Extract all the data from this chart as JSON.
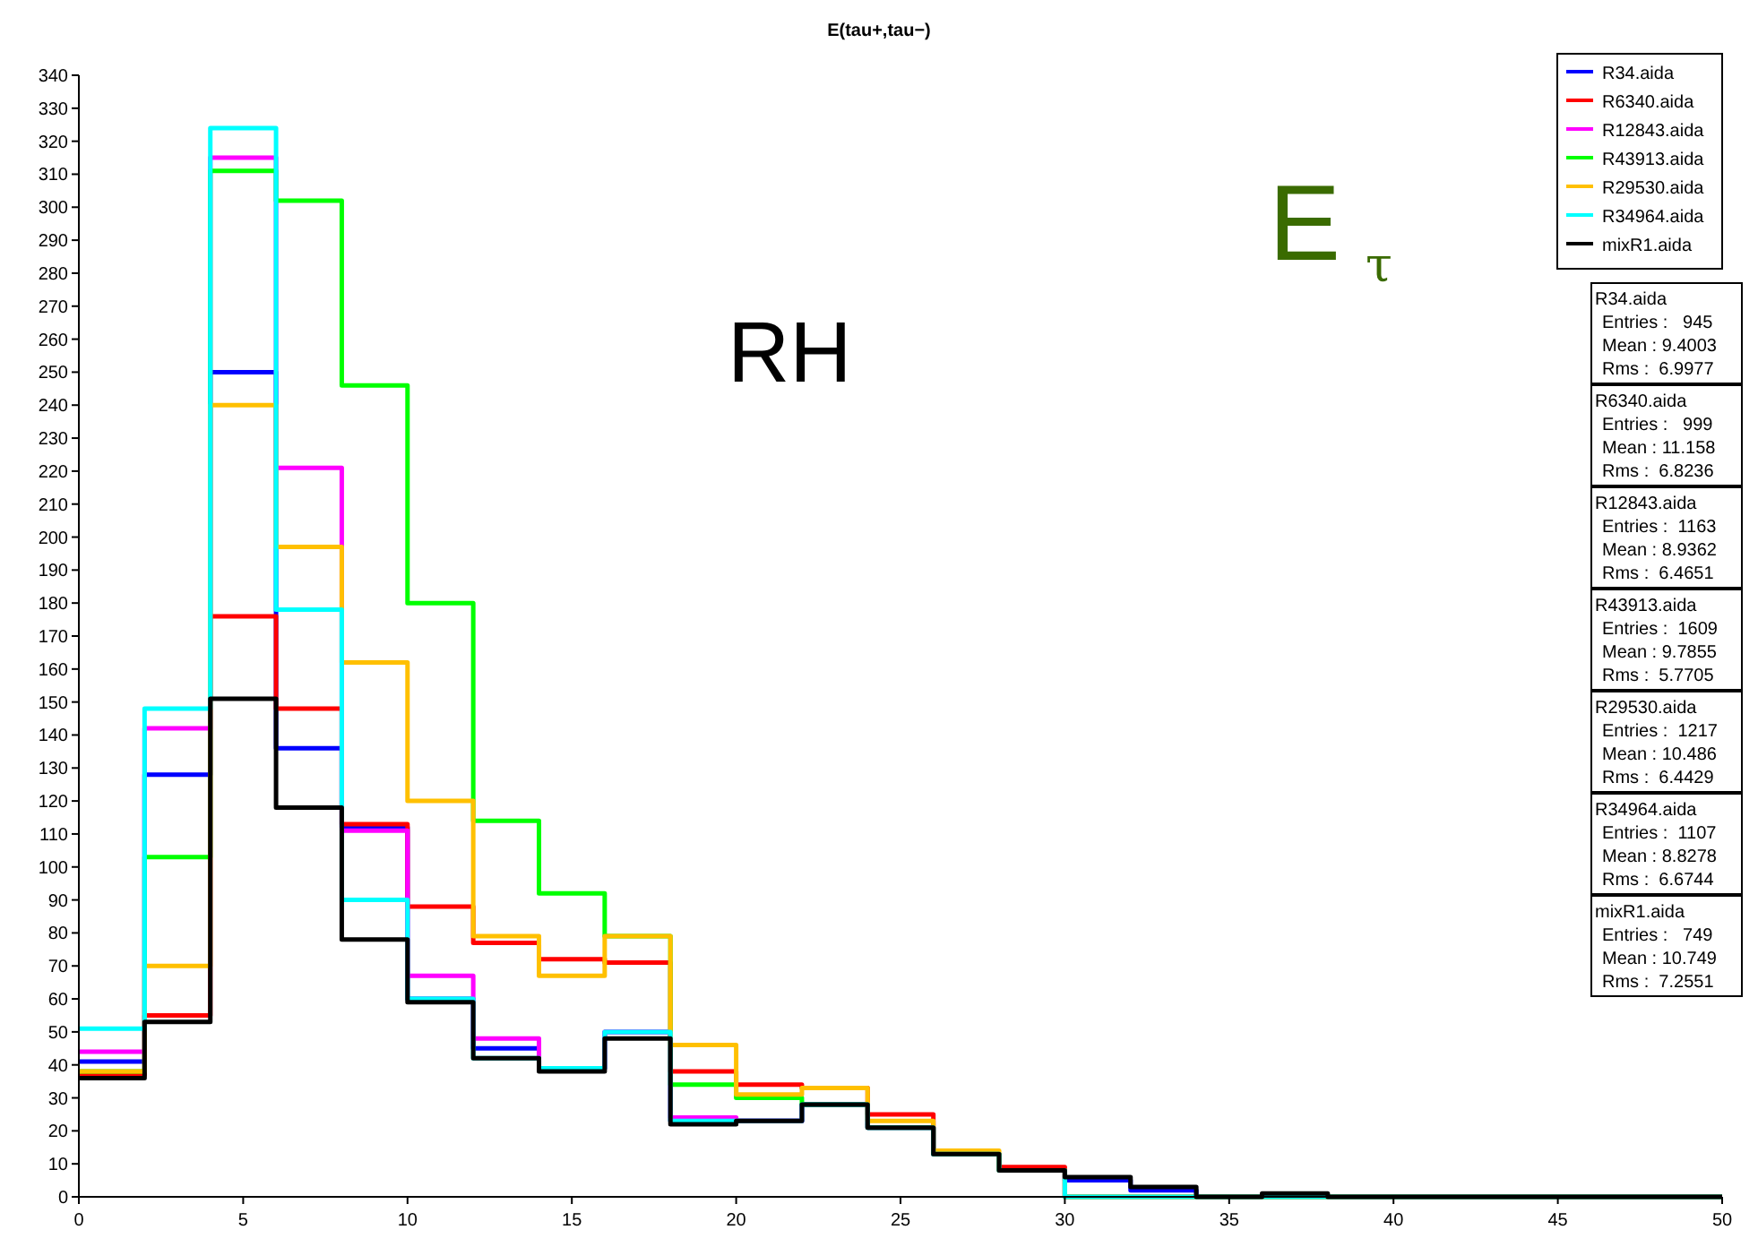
{
  "chart_data": {
    "type": "histogram",
    "title": "E(tau+,tau−)",
    "bins": [
      0,
      2,
      4,
      6,
      8,
      10,
      12,
      14,
      16,
      18,
      20,
      22,
      24,
      26,
      28,
      30,
      32,
      34,
      36,
      38,
      40,
      42,
      44,
      46,
      48,
      50
    ],
    "series": [
      {
        "name": "R34.aida",
        "color": "#0000ff",
        "values": [
          41,
          128,
          250,
          136,
          112,
          60,
          45,
          39,
          50,
          23,
          23,
          28,
          21,
          13,
          8,
          5,
          2,
          0,
          0,
          0,
          0,
          0,
          0,
          0,
          0
        ]
      },
      {
        "name": "R6340.aida",
        "color": "#ff0000",
        "values": [
          37,
          55,
          176,
          148,
          113,
          88,
          77,
          72,
          71,
          38,
          34,
          33,
          25,
          13,
          9,
          0,
          0,
          0,
          0,
          0,
          0,
          0,
          0,
          0,
          0
        ]
      },
      {
        "name": "R12843.aida",
        "color": "#ff00ff",
        "values": [
          44,
          142,
          315,
          221,
          111,
          67,
          48,
          39,
          50,
          24,
          23,
          28,
          21,
          13,
          8,
          0,
          0,
          0,
          0,
          0,
          0,
          0,
          0,
          0,
          0
        ]
      },
      {
        "name": "R43913.aida",
        "color": "#00ff00",
        "values": [
          38,
          103,
          311,
          302,
          246,
          180,
          114,
          92,
          79,
          34,
          30,
          28,
          21,
          13,
          8,
          0,
          0,
          0,
          0,
          0,
          0,
          0,
          0,
          0,
          0
        ]
      },
      {
        "name": "R29530.aida",
        "color": "#ffc000",
        "values": [
          38,
          70,
          240,
          197,
          162,
          120,
          79,
          67,
          79,
          46,
          31,
          33,
          23,
          14,
          8,
          0,
          0,
          0,
          0,
          0,
          0,
          0,
          0,
          0,
          0
        ]
      },
      {
        "name": "R34964.aida",
        "color": "#00ffff",
        "values": [
          51,
          148,
          324,
          178,
          90,
          60,
          42,
          39,
          50,
          23,
          23,
          28,
          21,
          13,
          8,
          0,
          0,
          0,
          0,
          0,
          0,
          0,
          0,
          0,
          0
        ]
      },
      {
        "name": "mixR1.aida",
        "color": "#000000",
        "values": [
          36,
          53,
          151,
          118,
          78,
          59,
          42,
          38,
          48,
          22,
          23,
          28,
          21,
          13,
          8,
          6,
          3,
          0,
          1,
          0,
          0,
          0,
          0,
          0,
          0
        ]
      }
    ],
    "xlim": [
      0,
      50
    ],
    "xticks": [
      0,
      5,
      10,
      15,
      20,
      25,
      30,
      35,
      40,
      45,
      50
    ],
    "ylim": [
      0,
      340
    ],
    "yticks": [
      0,
      10,
      20,
      30,
      40,
      50,
      60,
      70,
      80,
      90,
      100,
      110,
      120,
      130,
      140,
      150,
      160,
      170,
      180,
      190,
      200,
      210,
      220,
      230,
      240,
      250,
      260,
      270,
      280,
      290,
      300,
      310,
      320,
      330,
      340
    ],
    "legend": "top right",
    "annotations": [
      "RH",
      "E$_{τ}$",
      "R34.aida\nEntries :   945\nMean : 9.4003\nRms :  6.9977",
      "R6340.aida\nEntries :   999\nMean : 11.158\nRms :  6.8236",
      "R12843.aida\nEntries :  1163\nMean : 8.9362\nRms :  6.4651",
      "R43913.aida\nEntries :  1609\nMean : 9.7855\nRms :  5.7705",
      "R29530.aida\nEntries :  1217\nMean : 10.486\nRms :  6.4429",
      "R34964.aida\nEntries :  1107\nMean : 8.8278\nRms :  6.6744",
      "mixR1.aida\nEntries :   749\nMean : 10.749\nRms :  7.2551"
    ]
  }
}
